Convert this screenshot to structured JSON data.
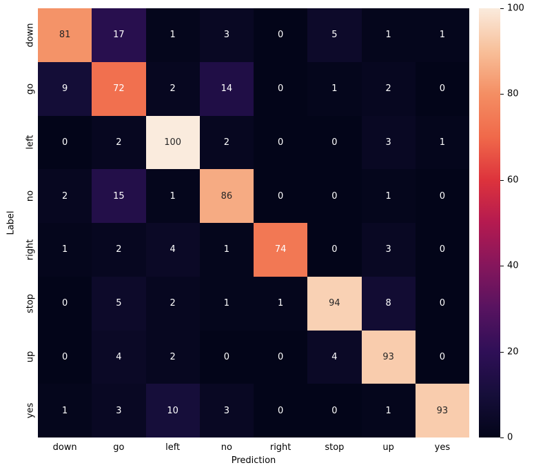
{
  "chart_data": {
    "type": "heatmap",
    "title": "",
    "xlabel": "Prediction",
    "ylabel": "Label",
    "x_categories": [
      "down",
      "go",
      "left",
      "no",
      "right",
      "stop",
      "up",
      "yes"
    ],
    "y_categories": [
      "down",
      "go",
      "left",
      "no",
      "right",
      "stop",
      "up",
      "yes"
    ],
    "matrix": [
      [
        81,
        17,
        1,
        3,
        0,
        5,
        1,
        1
      ],
      [
        9,
        72,
        2,
        14,
        0,
        1,
        2,
        0
      ],
      [
        0,
        2,
        100,
        2,
        0,
        0,
        3,
        1
      ],
      [
        2,
        15,
        1,
        86,
        0,
        0,
        1,
        0
      ],
      [
        1,
        2,
        4,
        1,
        74,
        0,
        3,
        0
      ],
      [
        0,
        5,
        2,
        1,
        1,
        94,
        8,
        0
      ],
      [
        0,
        4,
        2,
        0,
        0,
        4,
        93,
        0
      ],
      [
        1,
        3,
        10,
        3,
        0,
        0,
        1,
        93
      ]
    ],
    "vmin": 0,
    "vmax": 100,
    "grid": false,
    "legend": "none",
    "colorbar": {
      "position": "right",
      "ticks": [
        0,
        20,
        40,
        60,
        80,
        100
      ]
    },
    "colormap": {
      "name": "rocket",
      "anchors": [
        {
          "t": 0.0,
          "color": "#030519"
        },
        {
          "t": 0.1,
          "color": "#160E3A"
        },
        {
          "t": 0.2,
          "color": "#2F0F57"
        },
        {
          "t": 0.3,
          "color": "#571360"
        },
        {
          "t": 0.4,
          "color": "#85165C"
        },
        {
          "t": 0.5,
          "color": "#B41A50"
        },
        {
          "t": 0.6,
          "color": "#DD333C"
        },
        {
          "t": 0.7,
          "color": "#F0694A"
        },
        {
          "t": 0.8,
          "color": "#F48E63"
        },
        {
          "t": 0.9,
          "color": "#F8BF99"
        },
        {
          "t": 1.0,
          "color": "#FAEBDD"
        }
      ]
    },
    "annotation_text_colors": {
      "light": "#ffffff",
      "dark": "#262626"
    },
    "tick_label_color": "#000000",
    "background": "#ffffff"
  }
}
